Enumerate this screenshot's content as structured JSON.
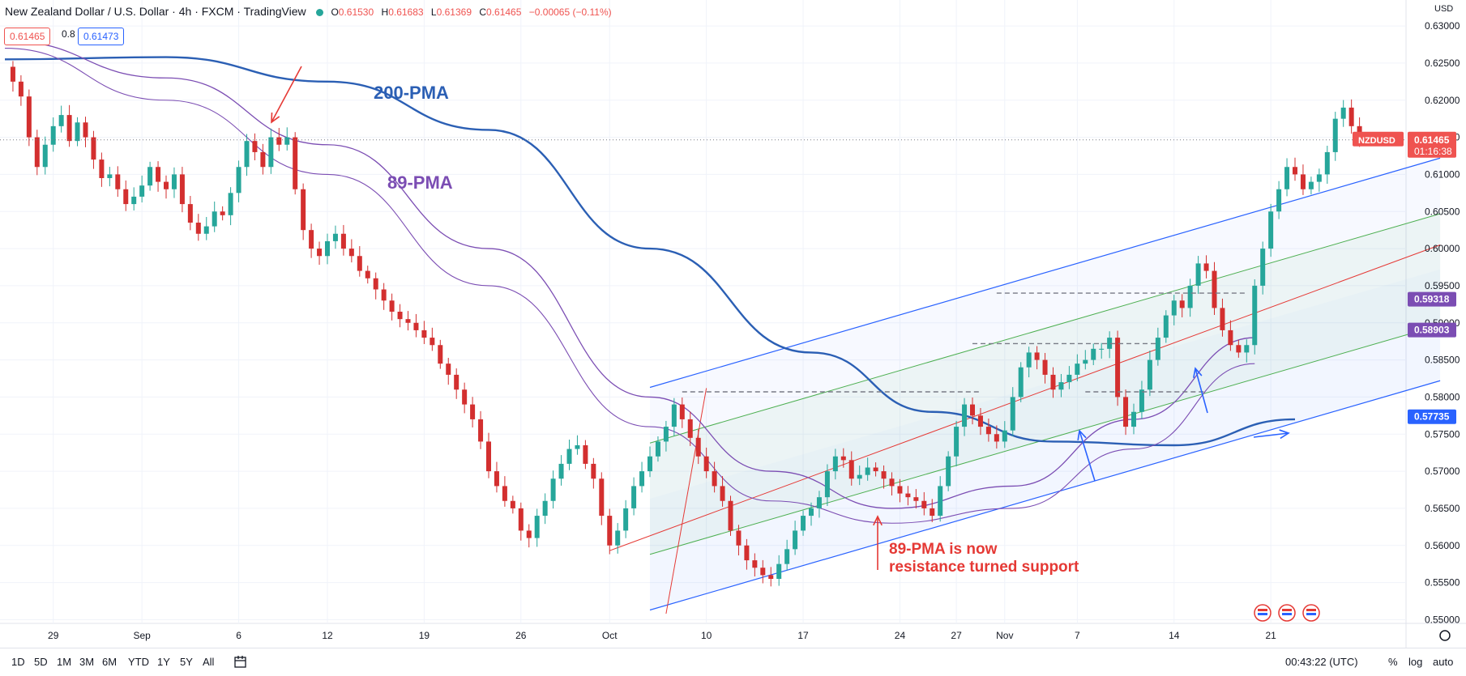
{
  "header": {
    "title": "New Zealand Dollar / U.S. Dollar · 4h · FXCM · TradingView",
    "ohlc": [
      {
        "k": "O",
        "v": "0.61530"
      },
      {
        "k": "H",
        "v": "0.61683"
      },
      {
        "k": "L",
        "v": "0.61369"
      },
      {
        "k": "C",
        "v": "0.61465"
      },
      {
        "k": "",
        "v": "−0.00065 (−0.11%)"
      }
    ],
    "sell_price": "0.61465",
    "spread": "0.8",
    "buy_price": "0.61473"
  },
  "currency_label": "USD",
  "toolbar": {
    "timeframes": [
      "1D",
      "5D",
      "1M",
      "3M",
      "6M",
      "YTD",
      "1Y",
      "5Y",
      "All"
    ],
    "time": "00:43:22 (UTC)",
    "pct": "%",
    "log": "log",
    "auto": "auto"
  },
  "annotations": {
    "pma200": "200-PMA",
    "pma89": "89-PMA",
    "note_line1": "89-PMA is now",
    "note_line2": "resistance turned support"
  },
  "colors": {
    "up": "#26a69a",
    "down": "#d32f2f",
    "pma200": "#2b5fb4",
    "pma89": "#7b4db3",
    "channel": "#2962ff",
    "median": "#e53935",
    "inner": "#4caf50",
    "note": "#e53935"
  },
  "chart_data": {
    "type": "candlestick",
    "symbol": "NZDUSD",
    "interval": "4h",
    "ylim": [
      0.5495,
      0.6335
    ],
    "y_ticks": [
      "0.63000",
      "0.62500",
      "0.62000",
      "0.61500",
      "0.61000",
      "0.60500",
      "0.60000",
      "0.59500",
      "0.59000",
      "0.58500",
      "0.58000",
      "0.57500",
      "0.57000",
      "0.56500",
      "0.56000",
      "0.55500",
      "0.55000"
    ],
    "x_ticks": [
      {
        "label": "29",
        "idx": 6
      },
      {
        "label": "Sep",
        "idx": 17
      },
      {
        "label": "6",
        "idx": 29
      },
      {
        "label": "12",
        "idx": 40
      },
      {
        "label": "19",
        "idx": 52
      },
      {
        "label": "26",
        "idx": 64
      },
      {
        "label": "Oct",
        "idx": 75
      },
      {
        "label": "10",
        "idx": 87
      },
      {
        "label": "17",
        "idx": 99
      },
      {
        "label": "24",
        "idx": 111
      },
      {
        "label": "27",
        "idx": 118
      },
      {
        "label": "Nov",
        "idx": 124
      },
      {
        "label": "7",
        "idx": 133
      },
      {
        "label": "14",
        "idx": 145
      },
      {
        "label": "21",
        "idx": 157
      }
    ],
    "close_series": [
      0.6245,
      0.6225,
      0.6205,
      0.615,
      0.611,
      0.614,
      0.6165,
      0.618,
      0.6145,
      0.617,
      0.615,
      0.612,
      0.6095,
      0.61,
      0.608,
      0.606,
      0.607,
      0.6085,
      0.611,
      0.609,
      0.608,
      0.61,
      0.606,
      0.6035,
      0.602,
      0.603,
      0.605,
      0.6045,
      0.6075,
      0.611,
      0.6145,
      0.613,
      0.611,
      0.615,
      0.614,
      0.615,
      0.608,
      0.6025,
      0.6,
      0.599,
      0.601,
      0.602,
      0.6,
      0.599,
      0.597,
      0.596,
      0.5945,
      0.593,
      0.5915,
      0.5905,
      0.59,
      0.589,
      0.588,
      0.587,
      0.5845,
      0.583,
      0.581,
      0.579,
      0.577,
      0.574,
      0.57,
      0.568,
      0.566,
      0.565,
      0.562,
      0.561,
      0.564,
      0.566,
      0.569,
      0.571,
      0.573,
      0.5735,
      0.571,
      0.569,
      0.564,
      0.56,
      0.562,
      0.565,
      0.568,
      0.57,
      0.572,
      0.574,
      0.576,
      0.579,
      0.577,
      0.5745,
      0.572,
      0.57,
      0.568,
      0.566,
      0.562,
      0.56,
      0.558,
      0.557,
      0.556,
      0.5555,
      0.5575,
      0.5595,
      0.562,
      0.564,
      0.565,
      0.5665,
      0.57,
      0.572,
      0.5715,
      0.569,
      0.5695,
      0.5705,
      0.57,
      0.569,
      0.568,
      0.567,
      0.5665,
      0.566,
      0.565,
      0.564,
      0.568,
      0.572,
      0.576,
      0.579,
      0.5775,
      0.576,
      0.575,
      0.574,
      0.5755,
      0.58,
      0.584,
      0.586,
      0.585,
      0.583,
      0.581,
      0.582,
      0.583,
      0.5845,
      0.585,
      0.5865,
      0.5865,
      0.588,
      0.58,
      0.576,
      0.578,
      0.581,
      0.585,
      0.588,
      0.591,
      0.593,
      0.592,
      0.595,
      0.598,
      0.597,
      0.592,
      0.589,
      0.587,
      0.586,
      0.587,
      0.595,
      0.6,
      0.605,
      0.608,
      0.611,
      0.61,
      0.608,
      0.609,
      0.61,
      0.613,
      0.6175,
      0.619,
      0.6165,
      0.61465
    ],
    "series": [
      {
        "name": "200-PMA",
        "points": [
          [
            0,
            0.6255
          ],
          [
            20,
            0.6258
          ],
          [
            40,
            0.6225
          ],
          [
            60,
            0.616
          ],
          [
            80,
            0.6
          ],
          [
            100,
            0.586
          ],
          [
            115,
            0.578
          ],
          [
            130,
            0.574
          ],
          [
            145,
            0.5735
          ],
          [
            160,
            0.577
          ]
        ]
      },
      {
        "name": "89-PMA",
        "points": [
          [
            0,
            0.628
          ],
          [
            20,
            0.623
          ],
          [
            40,
            0.614
          ],
          [
            60,
            0.6
          ],
          [
            80,
            0.58
          ],
          [
            95,
            0.57
          ],
          [
            110,
            0.565
          ],
          [
            125,
            0.568
          ],
          [
            140,
            0.577
          ],
          [
            155,
            0.588
          ]
        ]
      },
      {
        "name": "",
        "points": [
          [
            0,
            0.627
          ],
          [
            20,
            0.62
          ],
          [
            40,
            0.61
          ],
          [
            60,
            0.595
          ],
          [
            80,
            0.576
          ],
          [
            95,
            0.566
          ],
          [
            110,
            0.563
          ],
          [
            125,
            0.565
          ],
          [
            140,
            0.573
          ],
          [
            155,
            0.5845
          ]
        ]
      }
    ],
    "channel": {
      "start": {
        "idx": 80,
        "value": 0.5513
      },
      "end": {
        "idx": 178,
        "value": 0.5822
      },
      "width": 0.03,
      "inner_offsets": [
        0.0075,
        0.015,
        0.0225
      ]
    },
    "median_line": {
      "from": [
        75,
        0.5593
      ],
      "to": [
        178,
        0.6005
      ]
    },
    "price_lines": [
      {
        "label": "0.59318",
        "value": 0.59318,
        "color": "#7b4db3"
      },
      {
        "label": "0.58903",
        "value": 0.58903,
        "color": "#7b4db3"
      },
      {
        "label": "0.57735",
        "value": 0.57735,
        "color": "#2962ff"
      },
      {
        "label": "NZDUSD",
        "value": 0.61465,
        "color": "#ef5350",
        "price": "0.61465",
        "countdown": "01:16:38"
      }
    ],
    "resistance_lines": [
      {
        "from": [
          84,
          0.5807
        ],
        "to": [
          121,
          0.5807
        ]
      },
      {
        "from": [
          120,
          0.5872
        ],
        "to": [
          143,
          0.5872
        ]
      },
      {
        "from": [
          123,
          0.594
        ],
        "to": [
          154,
          0.594
        ]
      },
      {
        "from": [
          134,
          0.5807
        ],
        "to": [
          149,
          0.5807
        ]
      }
    ]
  }
}
